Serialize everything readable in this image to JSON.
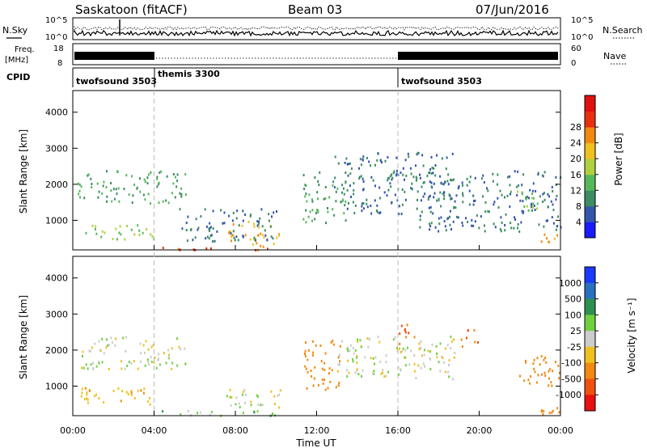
{
  "header": {
    "station": "Saskatoon (fitACF)",
    "beam": "Beam 03",
    "date": "07/Jun/2016"
  },
  "panels": {
    "noise": {
      "left_label": "N.Sky",
      "left_ticks": [
        "10^5",
        "10^0"
      ],
      "right_ticks": [
        "10^5",
        "10^0"
      ],
      "right_label": "N.Search"
    },
    "freq": {
      "left_label_line1": "Freq.",
      "left_label_line2": "[MHz]",
      "left_ticks": [
        "18",
        "8"
      ],
      "right_ticks": [
        "60",
        "0"
      ],
      "right_label": "Nave"
    },
    "cpid": {
      "label": "CPID",
      "segments": [
        {
          "name": "twofsound 3503",
          "start_h": 0
        },
        {
          "name": "themis 3300",
          "start_h": 4
        },
        {
          "name": "twofsound 3503",
          "start_h": 16
        }
      ]
    }
  },
  "axes": {
    "ylabel": "Slant Range [km]",
    "yticks": [
      1000,
      2000,
      3000,
      4000
    ],
    "yrange": [
      180,
      4600
    ],
    "xlabel": "Time UT",
    "xticks": [
      "00:00",
      "04:00",
      "08:00",
      "12:00",
      "16:00",
      "20:00",
      "00:00"
    ],
    "xrange_hours": [
      0,
      24
    ],
    "mode_change_hours": [
      4,
      16
    ]
  },
  "colorbars": {
    "power": {
      "label": "Power [dB]",
      "ticks": [
        "4",
        "8",
        "12",
        "16",
        "20",
        "24",
        "28"
      ],
      "colors": [
        "#1a1aff",
        "#3355aa",
        "#3c8c64",
        "#56b85a",
        "#b0d040",
        "#f0c020",
        "#f08a10",
        "#e83010",
        "#e01010"
      ]
    },
    "velocity": {
      "label": "Velocity [m s⁻¹]",
      "ticks": [
        "1000",
        "500",
        "100",
        "25",
        "-25",
        "-100",
        "-500",
        "-1000"
      ],
      "colors": [
        "#1a3aff",
        "#2a70c0",
        "#2e9050",
        "#70d040",
        "#cccccc",
        "#f0c020",
        "#f08a10",
        "#f05010",
        "#e81010"
      ]
    }
  },
  "chart_data": [
    {
      "type": "heatmap",
      "title": "Power",
      "xlabel": "Time UT",
      "ylabel": "Slant Range [km]",
      "colorbar_label": "Power [dB]",
      "x_unit": "hours UT",
      "xlim": [
        0,
        24
      ],
      "ylim": [
        180,
        4600
      ],
      "regions": [
        {
          "t0": 0.2,
          "t1": 5.6,
          "r_min": 1500,
          "r_max": 2400,
          "dB": 12
        },
        {
          "t0": 0.3,
          "t1": 4.2,
          "r_min": 500,
          "r_max": 900,
          "dB": 16
        },
        {
          "t0": 4.0,
          "t1": 10.4,
          "r_min": 200,
          "r_max": 320,
          "dB": 28
        },
        {
          "t0": 7.6,
          "t1": 10.2,
          "r_min": 350,
          "r_max": 1000,
          "dB": 24
        },
        {
          "t0": 11.3,
          "t1": 13.4,
          "r_min": 900,
          "r_max": 2400,
          "dB": 12
        },
        {
          "t0": 12.8,
          "t1": 18.7,
          "r_min": 1200,
          "r_max": 2900,
          "dB": 8
        },
        {
          "t0": 17.0,
          "t1": 24.0,
          "r_min": 700,
          "r_max": 2400,
          "dB": 8
        },
        {
          "t0": 21.5,
          "t1": 23.0,
          "r_min": 1300,
          "r_max": 1900,
          "dB": 16
        },
        {
          "t0": 22.8,
          "t1": 24.0,
          "r_min": 350,
          "r_max": 700,
          "dB": 24
        },
        {
          "t0": 5.2,
          "t1": 10.0,
          "r_min": 450,
          "r_max": 1400,
          "dB": 8
        }
      ]
    },
    {
      "type": "heatmap",
      "title": "Velocity",
      "xlabel": "Time UT",
      "ylabel": "Slant Range [km]",
      "colorbar_label": "Velocity [m s⁻¹]",
      "x_unit": "hours UT",
      "xlim": [
        0,
        24
      ],
      "ylim": [
        180,
        4600
      ],
      "regions": [
        {
          "t0": 0.2,
          "t1": 5.6,
          "r_min": 1500,
          "r_max": 2400,
          "v": 0
        },
        {
          "t0": 0.3,
          "t1": 4.2,
          "r_min": 500,
          "r_max": 1000,
          "v": -80
        },
        {
          "t0": 4.0,
          "t1": 10.4,
          "r_min": 200,
          "r_max": 350,
          "v": 60
        },
        {
          "t0": 7.5,
          "t1": 10.3,
          "r_min": 400,
          "r_max": 1000,
          "v": 0
        },
        {
          "t0": 11.3,
          "t1": 13.2,
          "r_min": 900,
          "r_max": 2300,
          "v": -300
        },
        {
          "t0": 13.0,
          "t1": 19.0,
          "r_min": 1200,
          "r_max": 2400,
          "v": 0
        },
        {
          "t0": 16.0,
          "t1": 17.0,
          "r_min": 2200,
          "r_max": 2800,
          "v": -500
        },
        {
          "t0": 19.0,
          "t1": 20.0,
          "r_min": 2100,
          "r_max": 2600,
          "v": -500
        },
        {
          "t0": 21.8,
          "t1": 24.0,
          "r_min": 1000,
          "r_max": 1900,
          "v": -300
        },
        {
          "t0": 22.8,
          "t1": 24.0,
          "r_min": 250,
          "r_max": 700,
          "v": -300
        }
      ]
    }
  ]
}
